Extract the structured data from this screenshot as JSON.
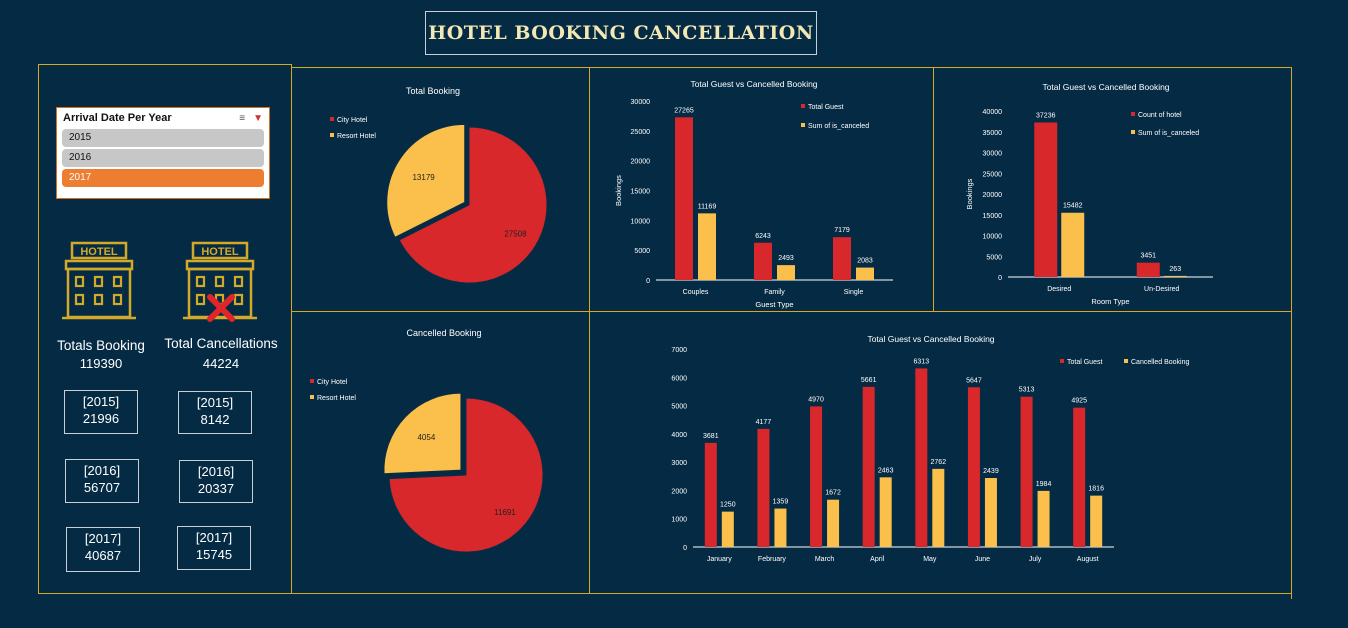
{
  "title": "HOTEL BOOKING CANCELLATION",
  "slicer": {
    "title": "Arrival Date Per Year",
    "items": [
      {
        "label": "2015",
        "selected": false
      },
      {
        "label": "2016",
        "selected": false
      },
      {
        "label": "2017",
        "selected": true
      }
    ]
  },
  "kpis": {
    "hotel_sign": "HOTEL",
    "total_booking": {
      "label": "Totals Booking",
      "value": "119390",
      "years": [
        {
          "year": "[2015]",
          "value": "21996"
        },
        {
          "year": "[2016]",
          "value": "56707"
        },
        {
          "year": "[2017]",
          "value": "40687"
        }
      ]
    },
    "total_cancellations": {
      "label": "Total Cancellations",
      "value": "44224",
      "years": [
        {
          "year": "[2015]",
          "value": "8142"
        },
        {
          "year": "[2016]",
          "value": "20337"
        },
        {
          "year": "[2017]",
          "value": "15745"
        }
      ]
    }
  },
  "colors": {
    "background": "#052b44",
    "red": "#d9282b",
    "yellow": "#fbc04b",
    "frame": "#d4a92a",
    "selected": "#ed7d31"
  },
  "chart_data": [
    {
      "type": "pie",
      "title": "Total  Booking",
      "categories": [
        "City Hotel",
        "Resort Hotel"
      ],
      "values": [
        27508,
        13179
      ],
      "exploded": "Resort Hotel"
    },
    {
      "type": "pie",
      "title": "Cancelled Booking",
      "categories": [
        "City Hotel",
        "Resort Hotel"
      ],
      "values": [
        11691,
        4054
      ],
      "exploded": "Resort Hotel"
    },
    {
      "type": "bar",
      "title": "Total Guest vs Cancelled Booking",
      "xlabel": "Guest Type",
      "ylabel": "Bookings",
      "categories": [
        "Couples",
        "Family",
        "Single"
      ],
      "series": [
        {
          "name": "Total Guest",
          "values": [
            27265,
            6243,
            7179
          ]
        },
        {
          "name": "Sum of is_canceled",
          "values": [
            11169,
            2493,
            2083
          ]
        }
      ],
      "ylim": [
        0,
        30000
      ],
      "yticks": [
        0,
        5000,
        10000,
        15000,
        20000,
        25000,
        30000
      ],
      "legend": "top-right"
    },
    {
      "type": "bar",
      "title": "Total Guest vs Cancelled Booking",
      "xlabel": "Room Type",
      "ylabel": "Bookings",
      "categories": [
        "Desired",
        "Un-Desired"
      ],
      "series": [
        {
          "name": "Count of hotel",
          "values": [
            37236,
            3451
          ]
        },
        {
          "name": "Sum of is_canceled",
          "values": [
            15482,
            263
          ]
        }
      ],
      "ylim": [
        0,
        40000
      ],
      "yticks": [
        0,
        5000,
        10000,
        15000,
        20000,
        25000,
        30000,
        35000,
        40000
      ],
      "legend": "top-right"
    },
    {
      "type": "bar",
      "title": "Total Guest vs Cancelled Booking",
      "xlabel": "",
      "ylabel": "",
      "categories": [
        "January",
        "February",
        "March",
        "April",
        "May",
        "June",
        "July",
        "August"
      ],
      "series": [
        {
          "name": "Total Guest",
          "values": [
            3681,
            4177,
            4970,
            5661,
            6313,
            5647,
            5313,
            4925
          ]
        },
        {
          "name": "Cancelled Booking",
          "values": [
            1250,
            1359,
            1672,
            2463,
            2762,
            2439,
            1984,
            1816
          ]
        }
      ],
      "ylim": [
        0,
        7000
      ],
      "yticks": [
        0,
        1000,
        2000,
        3000,
        4000,
        5000,
        6000,
        7000
      ],
      "legend": "top-right"
    }
  ]
}
